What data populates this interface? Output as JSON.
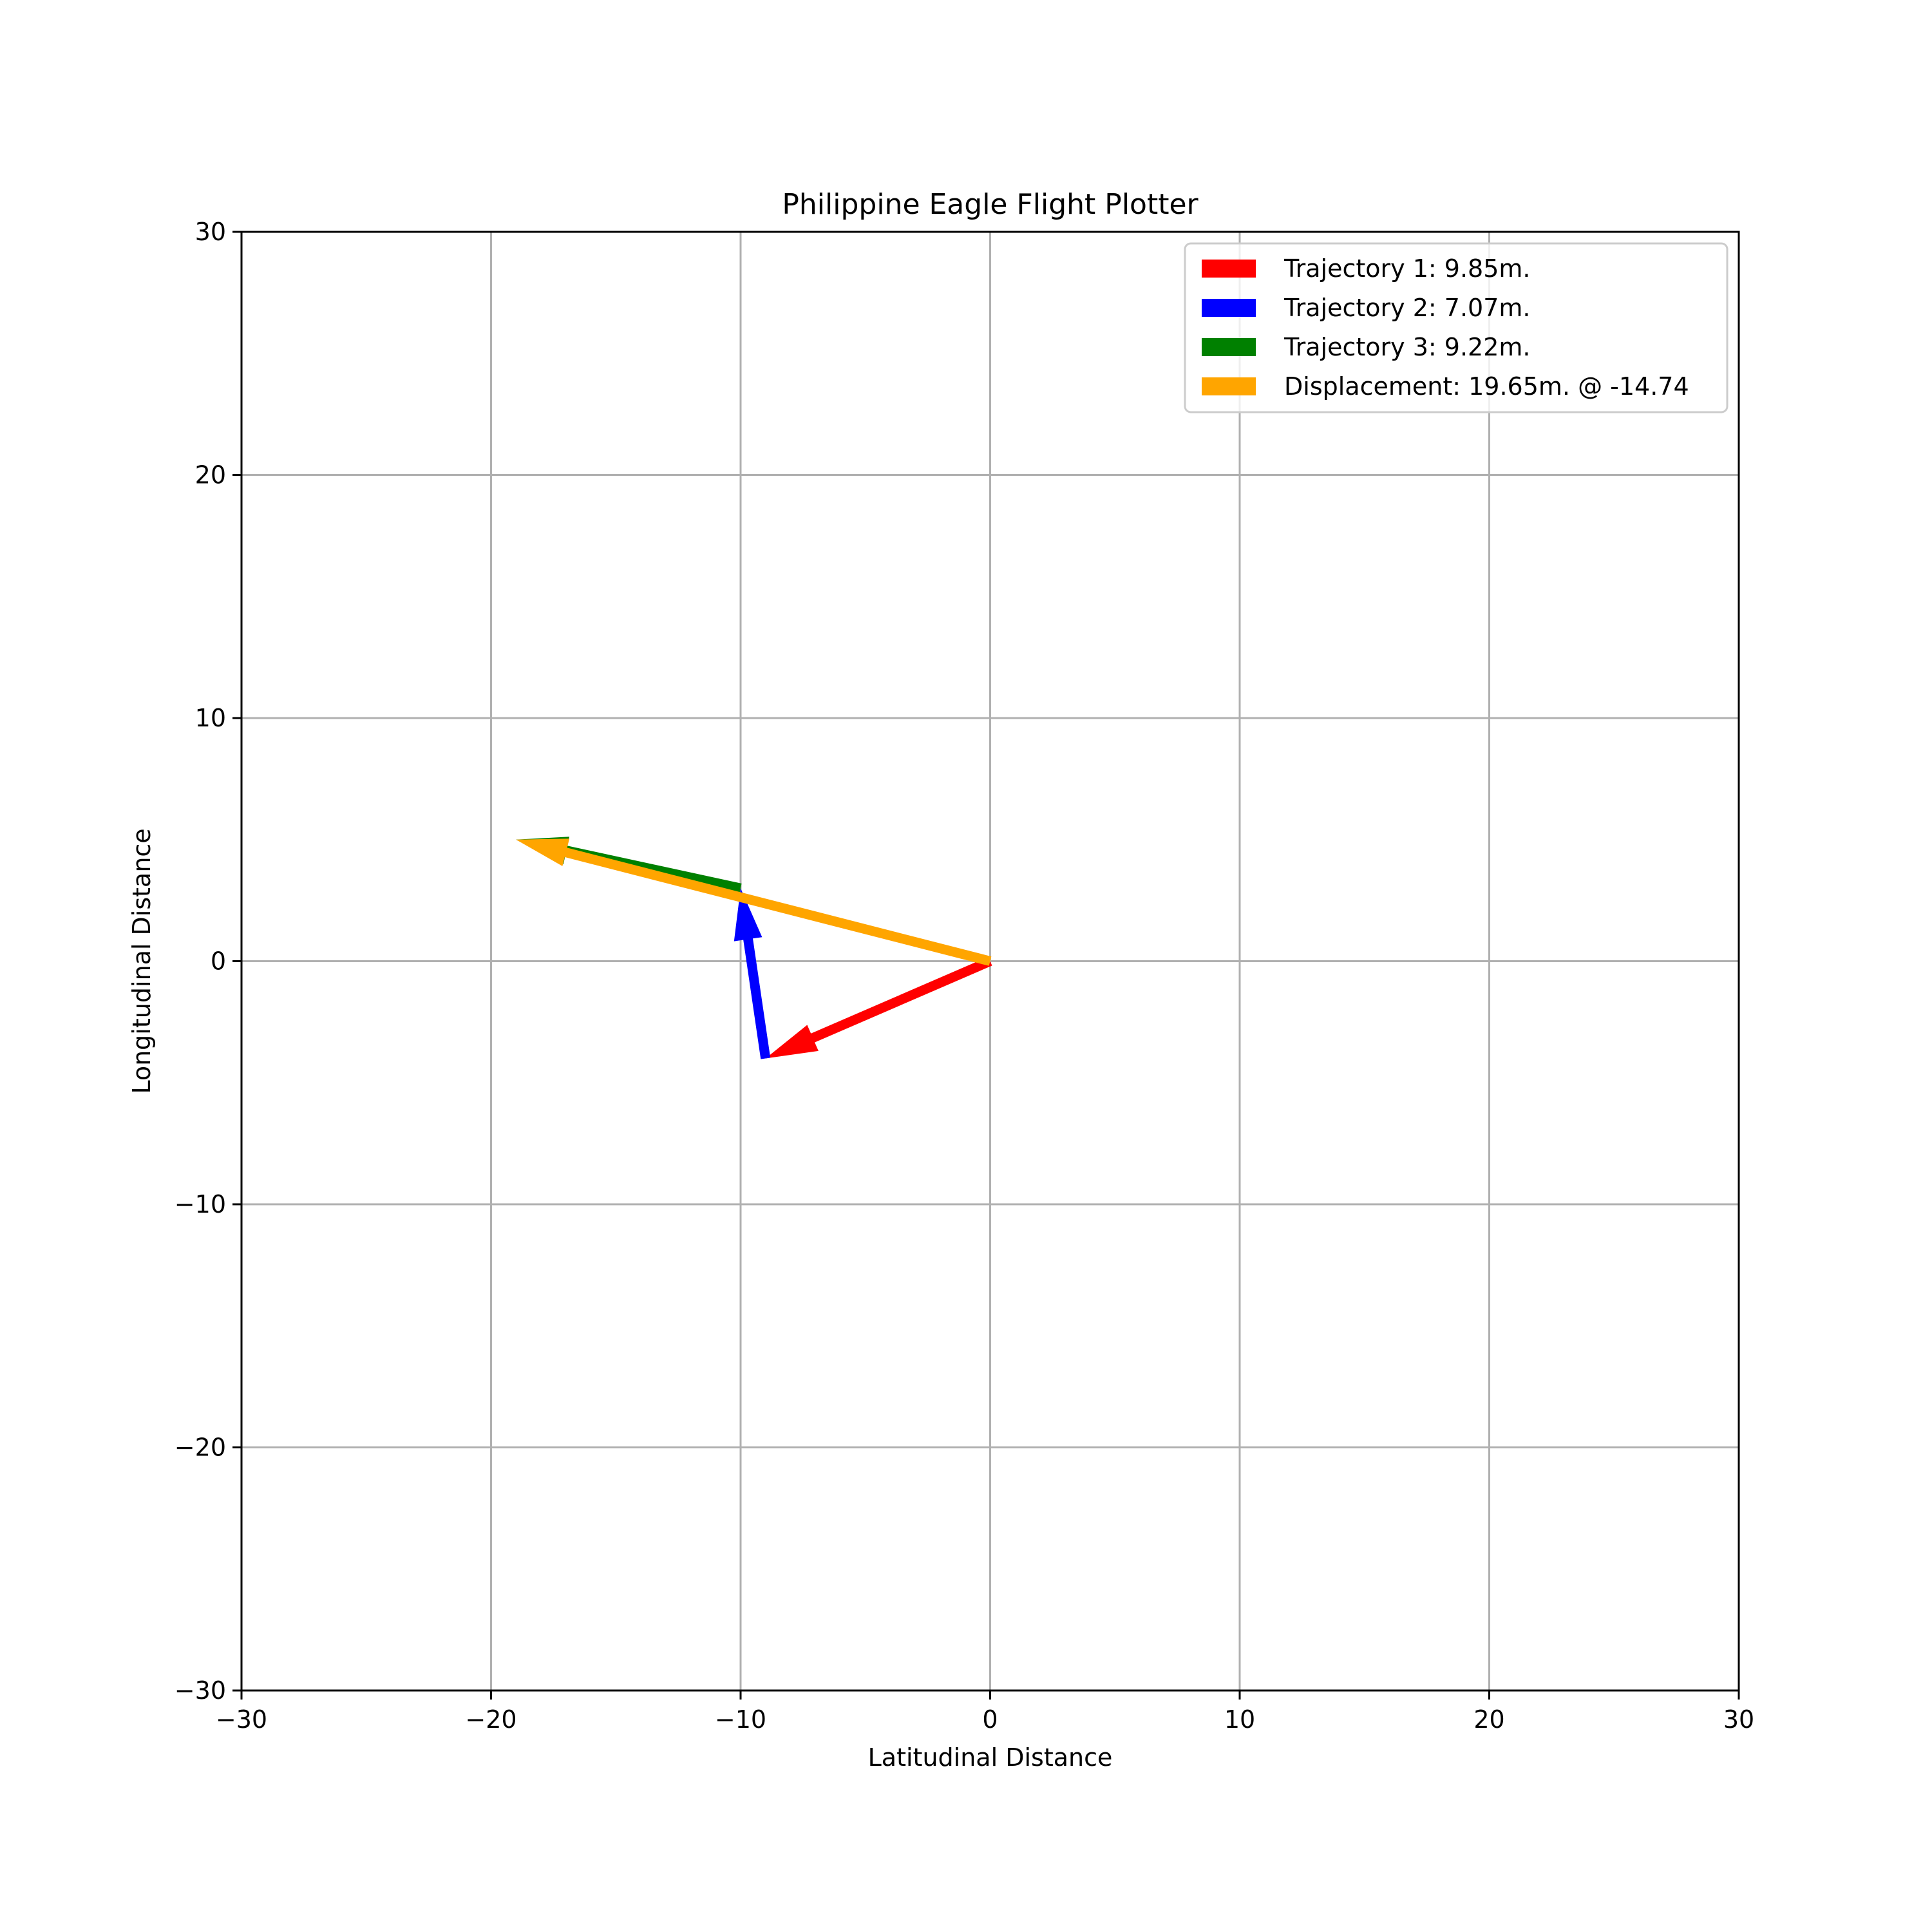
{
  "chart_data": {
    "type": "quiver",
    "title": "Philippine Eagle Flight Plotter",
    "xlabel": "Latitudinal Distance",
    "ylabel": "Longitudinal Distance",
    "xlim": [
      -30,
      30
    ],
    "ylim": [
      -30,
      30
    ],
    "xticks": [
      -30,
      -20,
      -10,
      0,
      10,
      20,
      30
    ],
    "yticks": [
      -30,
      -20,
      -10,
      0,
      10,
      20,
      30
    ],
    "xtick_labels": [
      "−30",
      "−20",
      "−10",
      "0",
      "10",
      "20",
      "30"
    ],
    "ytick_labels": [
      "−30",
      "−20",
      "−10",
      "0",
      "10",
      "20",
      "30"
    ],
    "grid": true,
    "legend_position": "top-right",
    "series": [
      {
        "name": "Trajectory 1: 9.85m.",
        "color": "#ff0000",
        "start": [
          0,
          0
        ],
        "end": [
          -9,
          -4
        ]
      },
      {
        "name": "Trajectory 2: 7.07m.",
        "color": "#0000ff",
        "start": [
          -9,
          -4
        ],
        "end": [
          -10,
          3
        ]
      },
      {
        "name": "Trajectory 3: 9.22m.",
        "color": "#008000",
        "start": [
          -10,
          3
        ],
        "end": [
          -19,
          5
        ]
      },
      {
        "name": "Displacement: 19.65m. @ -14.74",
        "color": "#ffa500",
        "start": [
          0,
          0
        ],
        "end": [
          -19,
          5
        ]
      }
    ]
  }
}
